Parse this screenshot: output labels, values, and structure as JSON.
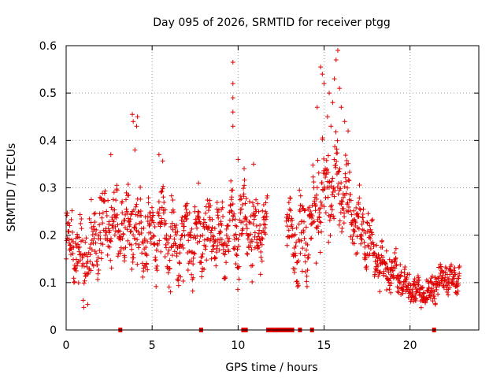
{
  "chart_data": {
    "type": "scatter",
    "title": "Day 095 of 2026, SRMTID for receiver ptgg",
    "xlabel": "GPS time / hours",
    "ylabel": "SRMTID / TECUs",
    "xlim": [
      0,
      24
    ],
    "ylim": [
      0,
      0.6
    ],
    "xticks": [
      0,
      5,
      10,
      15,
      20
    ],
    "yticks": [
      0,
      0.1,
      0.2,
      0.3,
      0.4,
      0.5,
      0.6
    ],
    "xtick_labels": [
      "0",
      "5",
      "10",
      "15",
      "20"
    ],
    "ytick_labels": [
      "0",
      "0.1",
      "0.2",
      "0.3",
      "0.4",
      "0.5",
      "0.6"
    ],
    "grid": true,
    "marker": "+",
    "color": "#e00000",
    "envelope": [
      [
        0.0,
        0.19,
        0.06
      ],
      [
        0.5,
        0.18,
        0.06
      ],
      [
        1.0,
        0.14,
        0.07
      ],
      [
        1.5,
        0.17,
        0.07
      ],
      [
        2.0,
        0.22,
        0.07
      ],
      [
        2.5,
        0.23,
        0.07
      ],
      [
        3.0,
        0.21,
        0.07
      ],
      [
        3.5,
        0.22,
        0.08
      ],
      [
        4.0,
        0.22,
        0.08
      ],
      [
        4.5,
        0.2,
        0.07
      ],
      [
        5.0,
        0.21,
        0.07
      ],
      [
        5.5,
        0.22,
        0.08
      ],
      [
        6.0,
        0.18,
        0.08
      ],
      [
        6.5,
        0.17,
        0.07
      ],
      [
        7.0,
        0.19,
        0.07
      ],
      [
        7.5,
        0.19,
        0.07
      ],
      [
        8.0,
        0.21,
        0.07
      ],
      [
        8.5,
        0.21,
        0.07
      ],
      [
        9.0,
        0.2,
        0.07
      ],
      [
        9.5,
        0.21,
        0.07
      ],
      [
        10.0,
        0.21,
        0.08
      ],
      [
        10.5,
        0.22,
        0.08
      ],
      [
        11.0,
        0.2,
        0.07
      ],
      [
        11.5,
        0.22,
        0.06
      ],
      [
        13.0,
        0.22,
        0.06
      ],
      [
        13.5,
        0.18,
        0.07
      ],
      [
        14.0,
        0.2,
        0.08
      ],
      [
        14.5,
        0.25,
        0.09
      ],
      [
        15.0,
        0.3,
        0.1
      ],
      [
        15.5,
        0.32,
        0.1
      ],
      [
        16.0,
        0.29,
        0.09
      ],
      [
        16.5,
        0.26,
        0.08
      ],
      [
        17.0,
        0.22,
        0.07
      ],
      [
        17.5,
        0.19,
        0.06
      ],
      [
        18.0,
        0.16,
        0.05
      ],
      [
        18.5,
        0.13,
        0.04
      ],
      [
        19.0,
        0.12,
        0.04
      ],
      [
        19.5,
        0.11,
        0.04
      ],
      [
        20.0,
        0.09,
        0.03
      ],
      [
        20.5,
        0.08,
        0.025
      ],
      [
        21.0,
        0.07,
        0.025
      ],
      [
        21.5,
        0.1,
        0.03
      ],
      [
        22.0,
        0.11,
        0.03
      ],
      [
        22.5,
        0.1,
        0.03
      ],
      [
        22.9,
        0.12,
        0.03
      ]
    ],
    "gaps": [
      [
        11.7,
        12.8
      ]
    ],
    "spikes": [
      [
        9.7,
        0.565
      ],
      [
        9.7,
        0.52
      ],
      [
        9.7,
        0.49
      ],
      [
        9.7,
        0.46
      ],
      [
        9.7,
        0.43
      ],
      [
        3.85,
        0.455
      ],
      [
        3.9,
        0.44
      ],
      [
        4.15,
        0.45
      ],
      [
        4.1,
        0.43
      ],
      [
        4.0,
        0.38
      ],
      [
        14.8,
        0.555
      ],
      [
        14.9,
        0.54
      ],
      [
        15.0,
        0.52
      ],
      [
        15.3,
        0.5
      ],
      [
        15.5,
        0.48
      ],
      [
        15.8,
        0.59
      ],
      [
        15.7,
        0.57
      ],
      [
        15.6,
        0.53
      ],
      [
        15.9,
        0.51
      ],
      [
        16.0,
        0.47
      ],
      [
        15.2,
        0.45
      ],
      [
        15.4,
        0.43
      ],
      [
        16.2,
        0.44
      ],
      [
        16.4,
        0.42
      ],
      [
        14.6,
        0.47
      ],
      [
        10.9,
        0.35
      ],
      [
        10.0,
        0.36
      ],
      [
        5.4,
        0.37
      ],
      [
        2.6,
        0.37
      ],
      [
        7.7,
        0.31
      ]
    ],
    "zero_markers": [
      3.15,
      7.85,
      10.3,
      10.45,
      11.75,
      11.95,
      12.15,
      12.35,
      12.55,
      12.75,
      12.95,
      13.15,
      13.6,
      14.3,
      21.4
    ]
  }
}
